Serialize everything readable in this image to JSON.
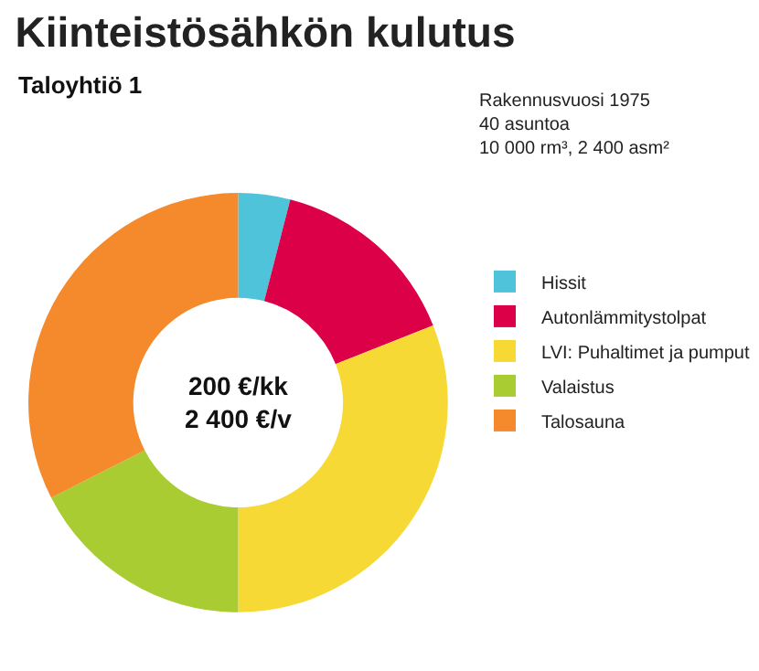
{
  "chart_data": {
    "type": "donut",
    "title": "Kiinteistösähkön kulutus",
    "subtitle": "Taloyhtiö 1",
    "categories": [
      "Hissit",
      "Autonlämmitystolpat",
      "LVI: Puhaltimet ja pumput",
      "Valaistus",
      "Talosauna"
    ],
    "values": [
      4,
      15,
      31,
      17.5,
      32.5
    ],
    "colors": [
      "#4ec3d9",
      "#dc0048",
      "#f7d936",
      "#a8cc32",
      "#f58a2c"
    ],
    "legend": "right",
    "annotations": [
      "Rakennusvuosi 1975\n40 asuntoa\n10 000 rm³, 2 400 asm²",
      "200 €/kk\n2 400 €/v"
    ]
  }
}
